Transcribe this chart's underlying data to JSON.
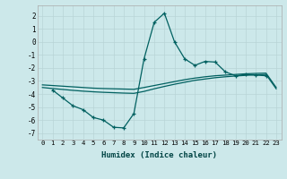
{
  "xlabel": "Humidex (Indice chaleur)",
  "bg_color": "#cce8ea",
  "grid_color": "#b8d4d6",
  "line_color": "#006060",
  "xlim": [
    -0.5,
    23.5
  ],
  "ylim": [
    -7.5,
    2.8
  ],
  "yticks": [
    -7,
    -6,
    -5,
    -4,
    -3,
    -2,
    -1,
    0,
    1,
    2
  ],
  "xticks": [
    0,
    1,
    2,
    3,
    4,
    5,
    6,
    7,
    8,
    9,
    10,
    11,
    12,
    13,
    14,
    15,
    16,
    17,
    18,
    19,
    20,
    21,
    22,
    23
  ],
  "line1_x": [
    0,
    1,
    2,
    3,
    4,
    5,
    6,
    7,
    8,
    9,
    10,
    11,
    12,
    13,
    14,
    15,
    16,
    17,
    18,
    19,
    20,
    21,
    22,
    23
  ],
  "line1_y": [
    -3.3,
    -3.35,
    -3.4,
    -3.45,
    -3.5,
    -3.55,
    -3.58,
    -3.6,
    -3.62,
    -3.64,
    -3.5,
    -3.35,
    -3.2,
    -3.05,
    -2.9,
    -2.78,
    -2.68,
    -2.6,
    -2.55,
    -2.5,
    -2.45,
    -2.42,
    -2.4,
    -3.5
  ],
  "line2_x": [
    0,
    1,
    2,
    3,
    4,
    5,
    6,
    7,
    8,
    9,
    10,
    11,
    12,
    13,
    14,
    15,
    16,
    17,
    18,
    19,
    20,
    21,
    22,
    23
  ],
  "line2_y": [
    -3.5,
    -3.58,
    -3.65,
    -3.72,
    -3.78,
    -3.83,
    -3.87,
    -3.9,
    -3.93,
    -3.95,
    -3.8,
    -3.6,
    -3.42,
    -3.25,
    -3.1,
    -2.95,
    -2.85,
    -2.75,
    -2.68,
    -2.62,
    -2.57,
    -2.53,
    -2.5,
    -3.6
  ],
  "line3_x": [
    1,
    2,
    3,
    4,
    5,
    6,
    7,
    8,
    9,
    10,
    11,
    12,
    13,
    14,
    15,
    16,
    17,
    18,
    19,
    20,
    21,
    22
  ],
  "line3_y": [
    -3.7,
    -4.3,
    -4.9,
    -5.2,
    -5.8,
    -6.0,
    -6.55,
    -6.6,
    -5.5,
    -1.3,
    1.5,
    2.2,
    0.0,
    -1.3,
    -1.8,
    -1.5,
    -1.55,
    -2.3,
    -2.6,
    -2.5,
    -2.55,
    -2.6
  ]
}
